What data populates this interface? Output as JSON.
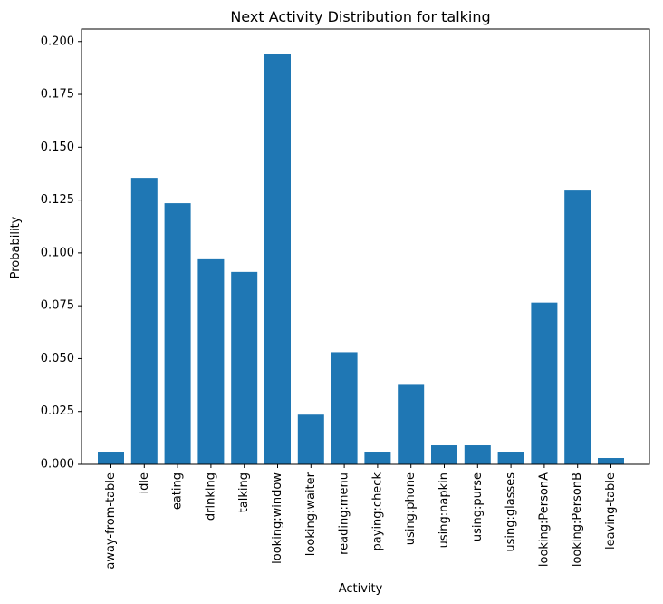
{
  "chart_data": {
    "type": "bar",
    "title": "Next Activity Distribution for talking",
    "xlabel": "Activity",
    "ylabel": "Probability",
    "categories": [
      "away-from-table",
      "idle",
      "eating",
      "drinking",
      "talking",
      "looking:window",
      "looking:waiter",
      "reading:menu",
      "paying:check",
      "using:phone",
      "using:napkin",
      "using:purse",
      "using:glasses",
      "looking:PersonA",
      "looking:PersonB",
      "leaving-table"
    ],
    "values": [
      0.006,
      0.1355,
      0.1235,
      0.097,
      0.091,
      0.194,
      0.0235,
      0.053,
      0.006,
      0.038,
      0.009,
      0.009,
      0.006,
      0.0765,
      0.1295,
      0.003
    ],
    "ylim": [
      0,
      0.2059
    ],
    "yticks": [
      "0.000",
      "0.025",
      "0.050",
      "0.075",
      "0.100",
      "0.125",
      "0.150",
      "0.175",
      "0.200"
    ],
    "ytick_values": [
      0,
      0.025,
      0.05,
      0.075,
      0.1,
      0.125,
      0.15,
      0.175,
      0.2
    ],
    "grid": false,
    "bar_color": "#1f77b4"
  }
}
